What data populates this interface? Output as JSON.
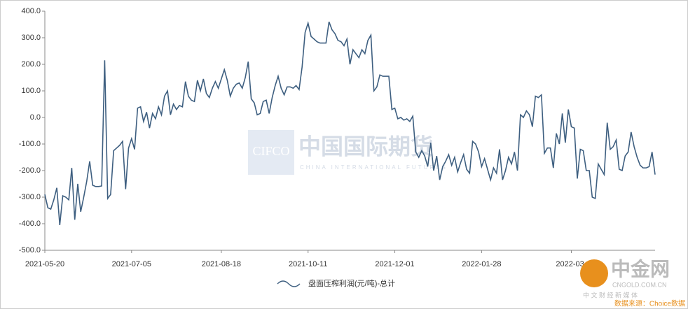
{
  "chart_data": {
    "type": "line",
    "categories": [
      "2021-05-20",
      null,
      null,
      null,
      null,
      null,
      null,
      null,
      null,
      null,
      null,
      null,
      null,
      null,
      null,
      null,
      null,
      null,
      null,
      null,
      null,
      null,
      null,
      null,
      null,
      null,
      null,
      null,
      null,
      "2021-07-05",
      null,
      null,
      null,
      null,
      null,
      null,
      null,
      null,
      null,
      null,
      null,
      null,
      null,
      null,
      null,
      null,
      null,
      null,
      null,
      null,
      null,
      null,
      null,
      null,
      null,
      null,
      null,
      null,
      null,
      "2021-08-18",
      null,
      null,
      null,
      null,
      null,
      null,
      null,
      null,
      null,
      null,
      null,
      null,
      null,
      null,
      null,
      null,
      null,
      null,
      null,
      null,
      null,
      null,
      null,
      null,
      null,
      null,
      null,
      null,
      "2021-10-11",
      null,
      null,
      null,
      null,
      null,
      null,
      null,
      null,
      null,
      null,
      null,
      null,
      null,
      null,
      null,
      null,
      null,
      null,
      null,
      null,
      null,
      null,
      null,
      null,
      null,
      null,
      null,
      null,
      "2021-12-01",
      null,
      null,
      null,
      null,
      null,
      null,
      null,
      null,
      null,
      null,
      null,
      null,
      null,
      null,
      null,
      null,
      null,
      null,
      null,
      null,
      null,
      null,
      null,
      null,
      null,
      null,
      null,
      null,
      "2022-01-28",
      null,
      null,
      null,
      null,
      null,
      null,
      null,
      null,
      null,
      null,
      null,
      null,
      null,
      null,
      null,
      null,
      null,
      null,
      null,
      null,
      null,
      null,
      null,
      null,
      null,
      null,
      null,
      null,
      null,
      "2022-03-",
      null,
      null,
      null,
      null,
      null,
      null,
      null,
      null,
      null,
      null,
      null,
      null,
      null,
      null,
      null,
      null,
      null,
      null,
      null,
      null,
      null,
      null,
      null,
      null,
      null,
      null,
      null,
      null
    ],
    "series": [
      {
        "name": "盘面压榨利润(元/吨)-总计",
        "color": "#3e5f80",
        "values": [
          -290,
          -340,
          -345,
          -310,
          -265,
          -405,
          -295,
          -300,
          -310,
          -190,
          -385,
          -250,
          -355,
          -300,
          -240,
          -165,
          -255,
          -260,
          -260,
          -258,
          215,
          -305,
          -290,
          -125,
          -115,
          -105,
          -90,
          -270,
          -115,
          -80,
          -120,
          35,
          40,
          -15,
          20,
          -40,
          15,
          -5,
          40,
          10,
          80,
          100,
          10,
          50,
          30,
          45,
          40,
          135,
          80,
          65,
          60,
          140,
          100,
          145,
          90,
          75,
          110,
          135,
          110,
          145,
          180,
          140,
          80,
          110,
          125,
          130,
          110,
          150,
          210,
          70,
          55,
          10,
          15,
          60,
          65,
          15,
          75,
          120,
          155,
          110,
          85,
          115,
          115,
          110,
          120,
          105,
          190,
          320,
          355,
          305,
          295,
          285,
          280,
          280,
          280,
          360,
          330,
          315,
          290,
          285,
          270,
          295,
          200,
          255,
          240,
          225,
          255,
          240,
          290,
          310,
          100,
          115,
          160,
          155,
          155,
          155,
          30,
          35,
          -5,
          0,
          -10,
          -5,
          -15,
          5,
          -130,
          -150,
          -125,
          -145,
          -185,
          -95,
          -200,
          -145,
          -235,
          -185,
          -165,
          -140,
          -180,
          -150,
          -205,
          -170,
          -140,
          -195,
          -210,
          -90,
          -100,
          -130,
          -185,
          -155,
          -195,
          -235,
          -190,
          -210,
          -120,
          -235,
          -200,
          -150,
          -175,
          -130,
          -200,
          10,
          0,
          25,
          10,
          -35,
          80,
          75,
          85,
          -135,
          -115,
          -115,
          -190,
          -60,
          -100,
          15,
          -95,
          30,
          -35,
          -40,
          -230,
          -120,
          -125,
          -200,
          -200,
          -300,
          -305,
          -175,
          -195,
          -215,
          -20,
          -120,
          -110,
          -85,
          -195,
          -200,
          -145,
          -130,
          -55,
          -110,
          -150,
          -180,
          -190,
          -190,
          -185,
          -130,
          -215
        ]
      }
    ],
    "ylim": [
      -500,
      400
    ],
    "yticks": [
      {
        "value": -500,
        "label": "-500.0"
      },
      {
        "value": -400,
        "label": "-400.0"
      },
      {
        "value": -300,
        "label": "-300.0"
      },
      {
        "value": -200,
        "label": "-200.0"
      },
      {
        "value": -100,
        "label": "-100.0"
      },
      {
        "value": 0,
        "label": "0.0"
      },
      {
        "value": 100,
        "label": "100.0"
      },
      {
        "value": 200,
        "label": "200.0"
      },
      {
        "value": 300,
        "label": "300.0"
      },
      {
        "value": 400,
        "label": "400.0"
      }
    ],
    "grid": false,
    "legend": "bottom"
  },
  "watermark": {
    "brand": "CIFCO",
    "name": "中国国际期货",
    "name_en": "CHINA INTERNATIONAL FUTURES",
    "site": "中金网",
    "site_url": "CNGOLD.COM.CN",
    "site_tagline": "中 文 财 经 新 媒 体",
    "source": "数据来源：Choice数据"
  }
}
